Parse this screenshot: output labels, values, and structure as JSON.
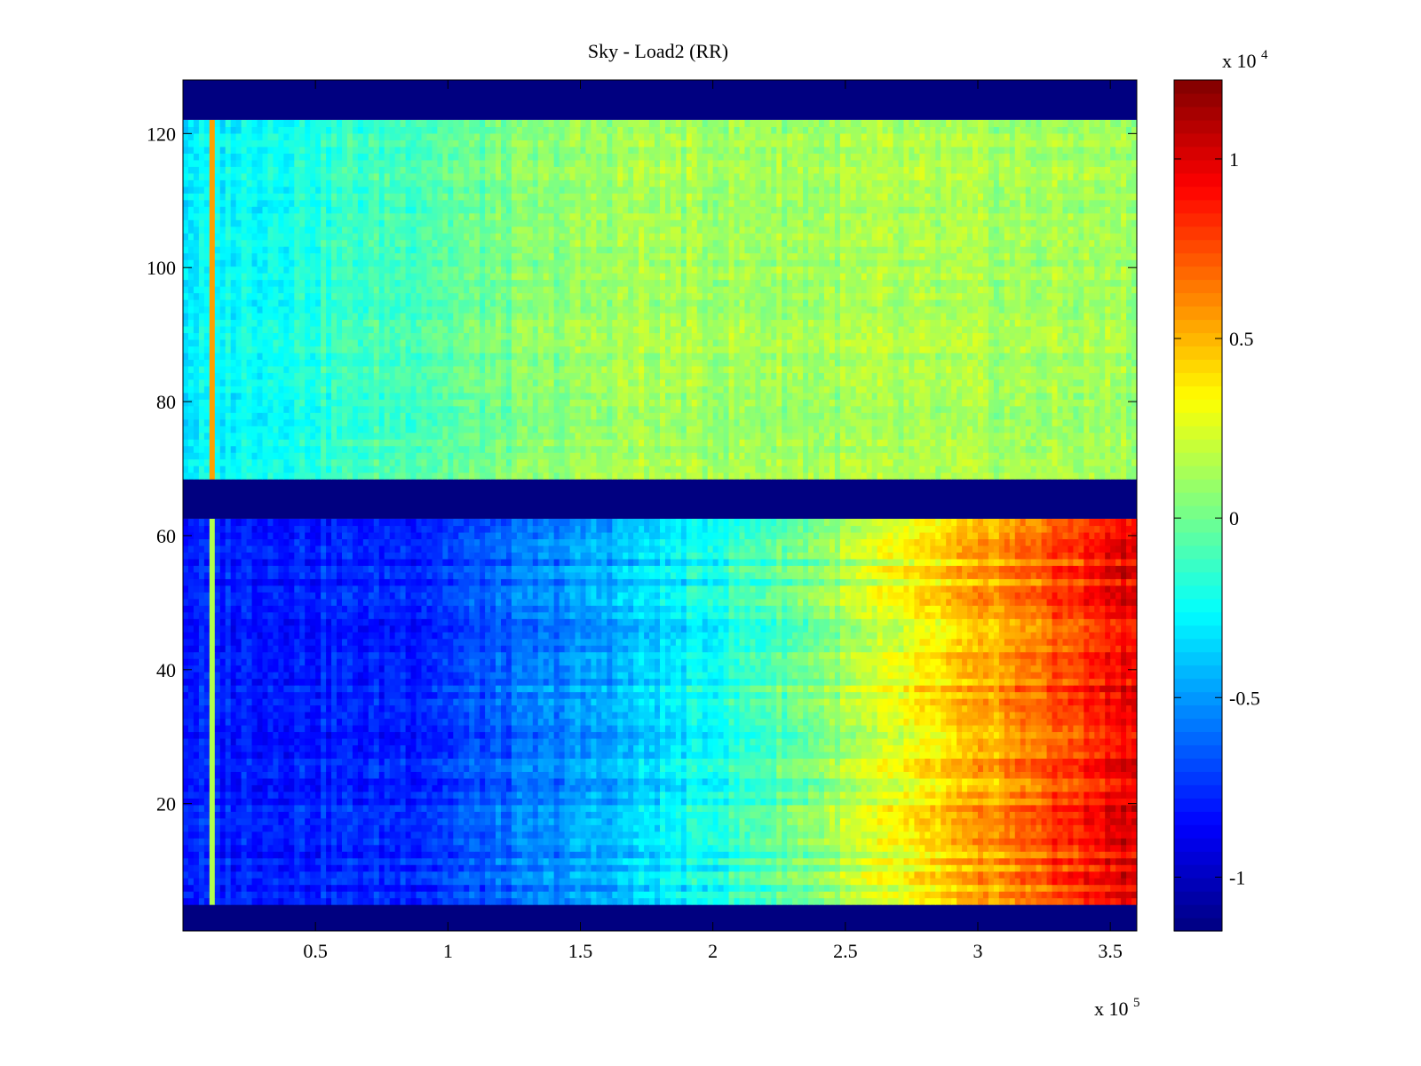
{
  "chart_data": {
    "type": "heatmap",
    "title": "Sky - Load2 (RR)",
    "xlabel": "",
    "ylabel": "",
    "x_multiplier": "x 10",
    "x_multiplier_exp": "5",
    "xlim": [
      0,
      3.6
    ],
    "ylim": [
      1,
      128
    ],
    "xticks": [
      0.5,
      1,
      1.5,
      2,
      2.5,
      3,
      3.5
    ],
    "xtick_labels": [
      "0.5",
      "1",
      "1.5",
      "2",
      "2.5",
      "3",
      "3.5"
    ],
    "yticks": [
      20,
      40,
      60,
      80,
      100,
      120
    ],
    "ytick_labels": [
      "20",
      "40",
      "60",
      "80",
      "100",
      "120"
    ],
    "colormap": "jet",
    "colorbar": {
      "multiplier": "x 10",
      "multiplier_exp": "4",
      "clim": [
        -1.15,
        1.22
      ],
      "ticks": [
        -1,
        -0.5,
        0,
        0.5,
        1
      ],
      "tick_labels": [
        "-1",
        "-0.5",
        "0",
        "0.5",
        "1"
      ]
    },
    "channel_blocks": [
      {
        "channels": [
          1,
          4
        ],
        "value": -1.15
      },
      {
        "channels": [
          5,
          62
        ],
        "left_value": -0.78,
        "right_value": 1.0
      },
      {
        "channels": [
          63,
          68
        ],
        "value": -1.15
      },
      {
        "channels": [
          69,
          122
        ],
        "left_value": -0.3,
        "right_value": 0.12
      },
      {
        "channels": [
          123,
          128
        ],
        "value": -1.15
      }
    ]
  }
}
